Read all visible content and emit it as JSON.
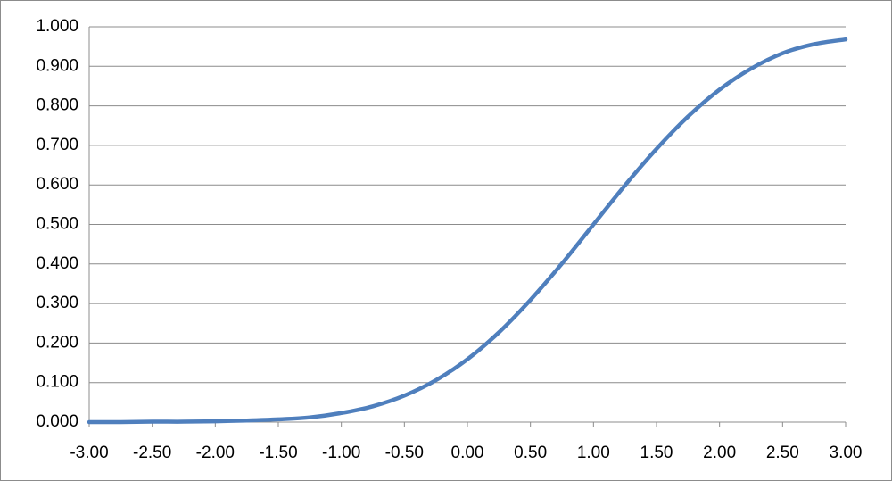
{
  "chart_data": {
    "type": "line",
    "x": [
      -3,
      -2.75,
      -2.5,
      -2.25,
      -2,
      -1.75,
      -1.5,
      -1.25,
      -1,
      -0.75,
      -0.5,
      -0.25,
      0,
      0.25,
      0.5,
      0.75,
      1,
      1.25,
      1.5,
      1.75,
      2,
      2.25,
      2.5,
      2.75,
      3
    ],
    "values": [
      0.0,
      0.0,
      0.001,
      0.001,
      0.002,
      0.004,
      0.007,
      0.012,
      0.023,
      0.04,
      0.067,
      0.106,
      0.159,
      0.227,
      0.309,
      0.401,
      0.5,
      0.599,
      0.691,
      0.773,
      0.841,
      0.894,
      0.933,
      0.956,
      0.968
    ],
    "color": "#4f7fbd",
    "xlim": [
      -3,
      3
    ],
    "ylim": [
      0,
      1
    ],
    "xticks": [
      {
        "value": -3,
        "label": "-3.00"
      },
      {
        "value": -2.5,
        "label": "-2.50"
      },
      {
        "value": -2,
        "label": "-2.00"
      },
      {
        "value": -1.5,
        "label": "-1.50"
      },
      {
        "value": -1,
        "label": "-1.00"
      },
      {
        "value": -0.5,
        "label": "-0.50"
      },
      {
        "value": 0,
        "label": "0.00"
      },
      {
        "value": 0.5,
        "label": "0.50"
      },
      {
        "value": 1,
        "label": "1.00"
      },
      {
        "value": 1.5,
        "label": "1.50"
      },
      {
        "value": 2,
        "label": "2.00"
      },
      {
        "value": 2.5,
        "label": "2.50"
      },
      {
        "value": 3,
        "label": "3.00"
      }
    ],
    "yticks": [
      {
        "value": 0,
        "label": "0.000"
      },
      {
        "value": 0.1,
        "label": "0.100"
      },
      {
        "value": 0.2,
        "label": "0.200"
      },
      {
        "value": 0.3,
        "label": "0.300"
      },
      {
        "value": 0.4,
        "label": "0.400"
      },
      {
        "value": 0.5,
        "label": "0.500"
      },
      {
        "value": 0.6,
        "label": "0.600"
      },
      {
        "value": 0.7,
        "label": "0.700"
      },
      {
        "value": 0.8,
        "label": "0.800"
      },
      {
        "value": 0.9,
        "label": "0.900"
      },
      {
        "value": 1,
        "label": "1.000"
      }
    ],
    "grid": true
  }
}
